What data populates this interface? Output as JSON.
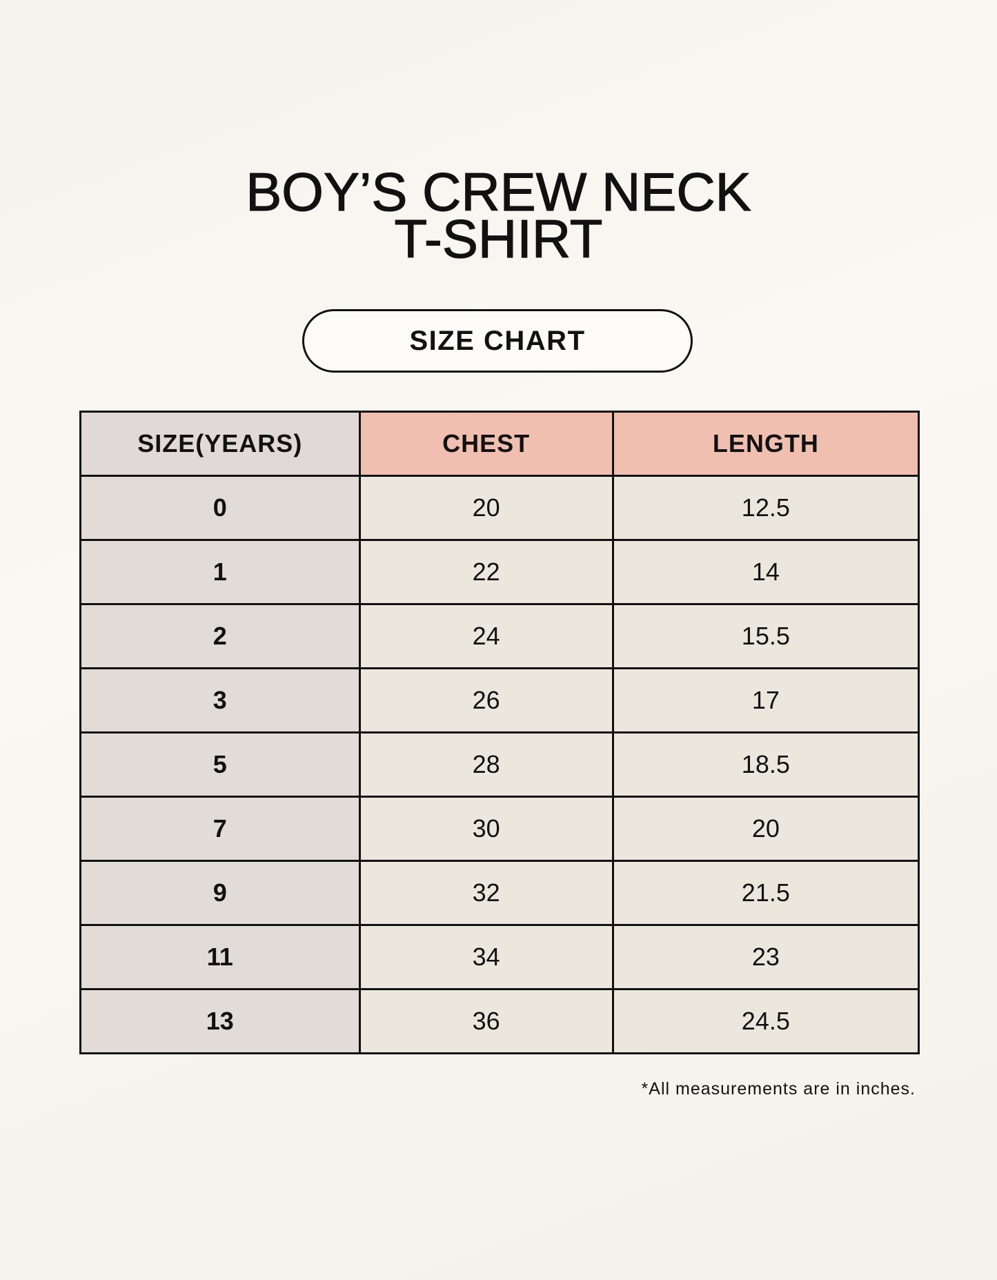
{
  "title": {
    "line1": "BOY’S CREW NECK",
    "line2": "T-SHIRT"
  },
  "badge": "SIZE CHART",
  "table": {
    "headers": [
      "SIZE(YEARS)",
      "CHEST",
      "LENGTH"
    ],
    "rows": [
      [
        "0",
        "20",
        "12.5"
      ],
      [
        "1",
        "22",
        "14"
      ],
      [
        "2",
        "24",
        "15.5"
      ],
      [
        "3",
        "26",
        "17"
      ],
      [
        "5",
        "28",
        "18.5"
      ],
      [
        "7",
        "30",
        "20"
      ],
      [
        "9",
        "32",
        "21.5"
      ],
      [
        "11",
        "34",
        "23"
      ],
      [
        "13",
        "36",
        "24.5"
      ]
    ]
  },
  "footnote": "*All measurements are in inches.",
  "colors": {
    "header_accent": "#f0bfb0",
    "size_column": "#e2dcd9",
    "value_cells": "#ece7dd"
  }
}
